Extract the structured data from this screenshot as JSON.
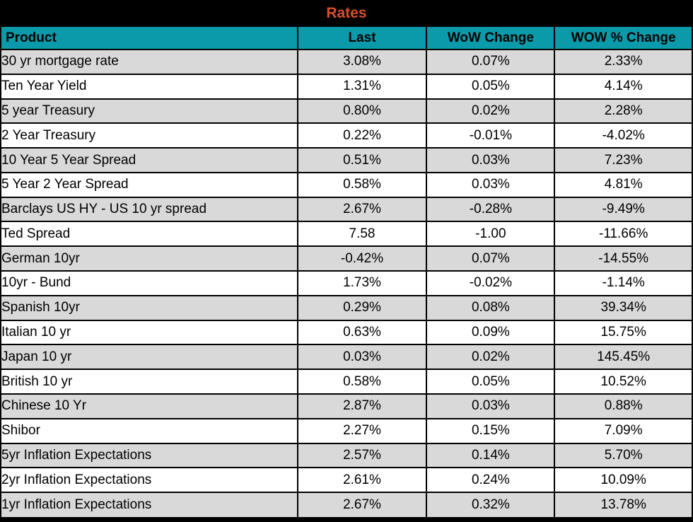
{
  "title": "Rates",
  "columns": [
    "Product",
    "Last",
    "WoW Change",
    "WOW % Change"
  ],
  "rows": [
    {
      "product": "30 yr mortgage rate",
      "last": "3.08%",
      "wow_change": "0.07%",
      "wow_pct_change": "2.33%"
    },
    {
      "product": "Ten Year Yield",
      "last": "1.31%",
      "wow_change": "0.05%",
      "wow_pct_change": "4.14%"
    },
    {
      "product": "5 year Treasury",
      "last": "0.80%",
      "wow_change": "0.02%",
      "wow_pct_change": "2.28%"
    },
    {
      "product": "2 Year Treasury",
      "last": "0.22%",
      "wow_change": "-0.01%",
      "wow_pct_change": "-4.02%"
    },
    {
      "product": "10 Year 5 Year Spread",
      "last": "0.51%",
      "wow_change": "0.03%",
      "wow_pct_change": "7.23%"
    },
    {
      "product": "5 Year 2 Year Spread",
      "last": "0.58%",
      "wow_change": "0.03%",
      "wow_pct_change": "4.81%"
    },
    {
      "product": "Barclays US HY - US 10 yr spread",
      "last": "2.67%",
      "wow_change": "-0.28%",
      "wow_pct_change": "-9.49%"
    },
    {
      "product": "Ted Spread",
      "last": "7.58",
      "wow_change": "-1.00",
      "wow_pct_change": "-11.66%"
    },
    {
      "product": "German 10yr",
      "last": "-0.42%",
      "wow_change": "0.07%",
      "wow_pct_change": "-14.55%"
    },
    {
      "product": "10yr - Bund",
      "last": "1.73%",
      "wow_change": "-0.02%",
      "wow_pct_change": "-1.14%"
    },
    {
      "product": "Spanish 10yr",
      "last": "0.29%",
      "wow_change": "0.08%",
      "wow_pct_change": "39.34%"
    },
    {
      "product": "Italian 10 yr",
      "last": "0.63%",
      "wow_change": "0.09%",
      "wow_pct_change": "15.75%"
    },
    {
      "product": "Japan 10 yr",
      "last": "0.03%",
      "wow_change": "0.02%",
      "wow_pct_change": "145.45%"
    },
    {
      "product": "British 10 yr",
      "last": "0.58%",
      "wow_change": "0.05%",
      "wow_pct_change": "10.52%"
    },
    {
      "product": "Chinese 10 Yr",
      "last": "2.87%",
      "wow_change": "0.03%",
      "wow_pct_change": "0.88%"
    },
    {
      "product": "Shibor",
      "last": "2.27%",
      "wow_change": "0.15%",
      "wow_pct_change": "7.09%"
    },
    {
      "product": "5yr Inflation Expectations",
      "last": "2.57%",
      "wow_change": "0.14%",
      "wow_pct_change": "5.70%"
    },
    {
      "product": "2yr Inflation Expectations",
      "last": "2.61%",
      "wow_change": "0.24%",
      "wow_pct_change": "10.09%"
    },
    {
      "product": "1yr Inflation Expectations",
      "last": "2.67%",
      "wow_change": "0.32%",
      "wow_pct_change": "13.78%"
    }
  ],
  "colors": {
    "title_bg": "#000000",
    "title_text": "#D7502D",
    "header_bg": "#0B9AA9",
    "header_text": "#000000",
    "row_alt_bg": "#D9D9D9",
    "row_bg": "#FFFFFF",
    "border": "#000000"
  },
  "chart_data": {
    "type": "table",
    "title": "Rates",
    "columns": [
      "Product",
      "Last",
      "WoW Change",
      "WOW % Change"
    ],
    "rows": [
      [
        "30 yr mortgage rate",
        "3.08%",
        "0.07%",
        "2.33%"
      ],
      [
        "Ten Year Yield",
        "1.31%",
        "0.05%",
        "4.14%"
      ],
      [
        "5 year Treasury",
        "0.80%",
        "0.02%",
        "2.28%"
      ],
      [
        "2 Year Treasury",
        "0.22%",
        "-0.01%",
        "-4.02%"
      ],
      [
        "10 Year 5 Year Spread",
        "0.51%",
        "0.03%",
        "7.23%"
      ],
      [
        "5 Year 2 Year Spread",
        "0.58%",
        "0.03%",
        "4.81%"
      ],
      [
        "Barclays US HY - US 10 yr spread",
        "2.67%",
        "-0.28%",
        "-9.49%"
      ],
      [
        "Ted Spread",
        "7.58",
        "-1.00",
        "-11.66%"
      ],
      [
        "German 10yr",
        "-0.42%",
        "0.07%",
        "-14.55%"
      ],
      [
        "10yr - Bund",
        "1.73%",
        "-0.02%",
        "-1.14%"
      ],
      [
        "Spanish 10yr",
        "0.29%",
        "0.08%",
        "39.34%"
      ],
      [
        "Italian 10 yr",
        "0.63%",
        "0.09%",
        "15.75%"
      ],
      [
        "Japan 10 yr",
        "0.03%",
        "0.02%",
        "145.45%"
      ],
      [
        "British 10 yr",
        "0.58%",
        "0.05%",
        "10.52%"
      ],
      [
        "Chinese 10 Yr",
        "2.87%",
        "0.03%",
        "0.88%"
      ],
      [
        "Shibor",
        "2.27%",
        "0.15%",
        "7.09%"
      ],
      [
        "5yr Inflation Expectations",
        "2.57%",
        "0.14%",
        "5.70%"
      ],
      [
        "2yr Inflation Expectations",
        "2.61%",
        "0.24%",
        "10.09%"
      ],
      [
        "1yr Inflation Expectations",
        "2.67%",
        "0.32%",
        "13.78%"
      ]
    ]
  }
}
